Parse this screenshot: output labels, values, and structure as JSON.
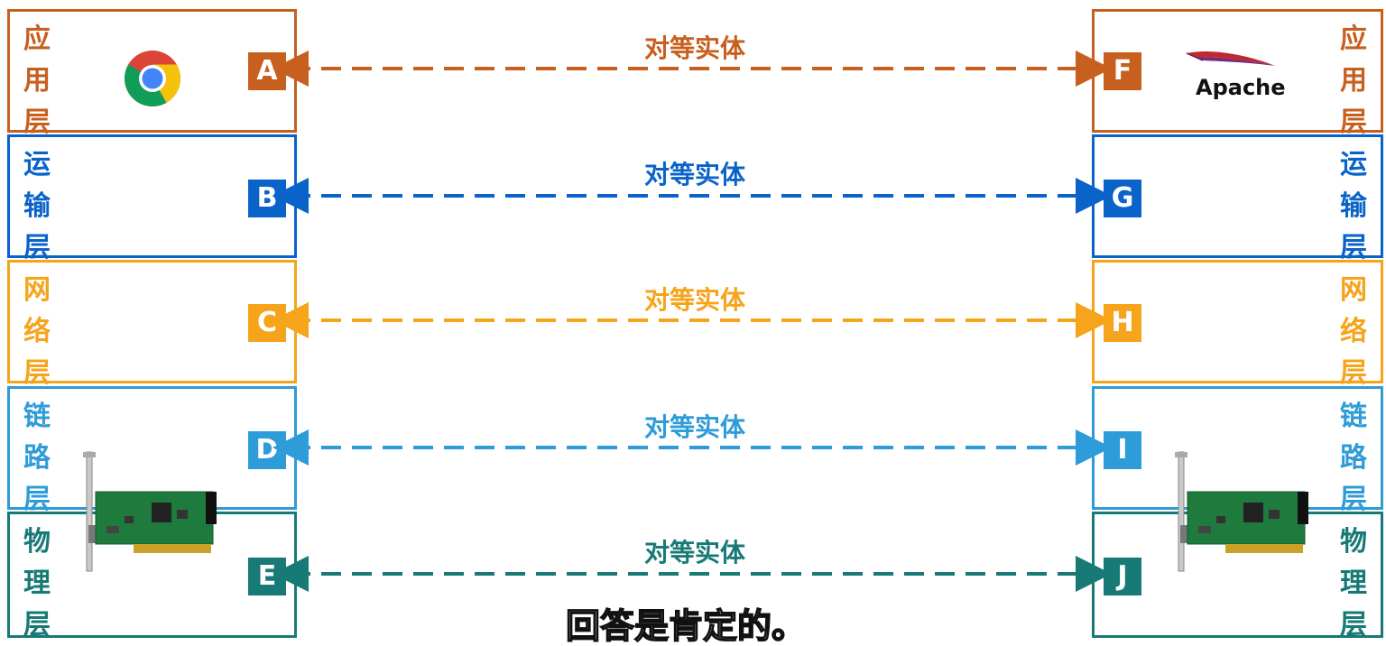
{
  "colors": {
    "application": "#c75f1e",
    "transport": "#0a63c9",
    "network": "#f5a41b",
    "link": "#2e9cd8",
    "physical": "#177a76"
  },
  "layers": [
    {
      "key": "application",
      "label_chars": [
        "应",
        "用",
        "层"
      ],
      "left_entity": "A",
      "right_entity": "F",
      "peer_label": "对等实体"
    },
    {
      "key": "transport",
      "label_chars": [
        "运",
        "输",
        "层"
      ],
      "left_entity": "B",
      "right_entity": "G",
      "peer_label": "对等实体"
    },
    {
      "key": "network",
      "label_chars": [
        "网",
        "络",
        "层"
      ],
      "left_entity": "C",
      "right_entity": "H",
      "peer_label": "对等实体"
    },
    {
      "key": "link",
      "label_chars": [
        "链",
        "路",
        "层"
      ],
      "left_entity": "D",
      "right_entity": "I",
      "peer_label": "对等实体"
    },
    {
      "key": "physical",
      "label_chars": [
        "物",
        "理",
        "层"
      ],
      "left_entity": "E",
      "right_entity": "J",
      "peer_label": "对等实体"
    }
  ],
  "apache_logo_text": "Apache",
  "left_app_icon": "chrome-browser-icon",
  "right_app_icon": "apache-feather-icon",
  "nic_icon": "network-interface-card-icon",
  "subtitle": "回答是肯定的。"
}
